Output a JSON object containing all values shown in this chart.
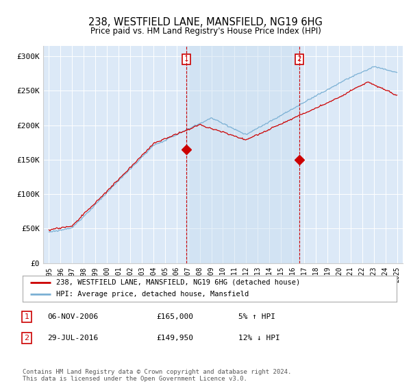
{
  "title": "238, WESTFIELD LANE, MANSFIELD, NG19 6HG",
  "subtitle": "Price paid vs. HM Land Registry's House Price Index (HPI)",
  "background_color": "#ffffff",
  "plot_bg_color": "#dce9f7",
  "ylabel_ticks": [
    "£0",
    "£50K",
    "£100K",
    "£150K",
    "£200K",
    "£250K",
    "£300K"
  ],
  "ytick_values": [
    0,
    50000,
    100000,
    150000,
    200000,
    250000,
    300000
  ],
  "ylim": [
    0,
    315000
  ],
  "xmin": 1994.5,
  "xmax": 2025.5,
  "marker1_year": 2006.85,
  "marker2_year": 2016.58,
  "marker1_price": 165000,
  "marker2_price": 149950,
  "legend_line1": "238, WESTFIELD LANE, MANSFIELD, NG19 6HG (detached house)",
  "legend_line2": "HPI: Average price, detached house, Mansfield",
  "footer": "Contains HM Land Registry data © Crown copyright and database right 2024.\nThis data is licensed under the Open Government Licence v3.0.",
  "line_color_property": "#cc0000",
  "line_color_hpi": "#7ab0d4",
  "shade_color": "#c8ddf0",
  "grid_color": "#ffffff",
  "annotation_box_color": "#cc0000"
}
